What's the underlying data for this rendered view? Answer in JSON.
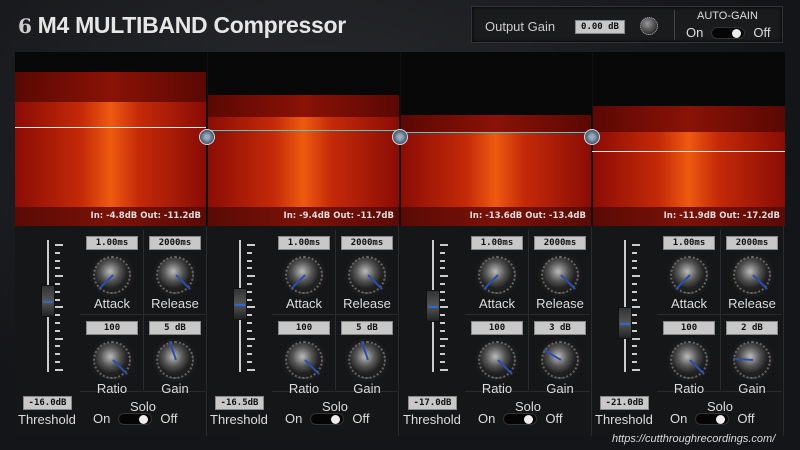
{
  "app": {
    "logo_glyph": "6",
    "title": "M4 MULTIBAND Compressor"
  },
  "output": {
    "label": "Output Gain",
    "value": "0.00 dB",
    "auto_gain_label": "AUTO-GAIN",
    "on": "On",
    "off": "Off",
    "auto_gain_state": "Off"
  },
  "colors": {
    "accent": "#2a4fb0",
    "threshold_line": "#3fd0d0",
    "band_fill": "#ee5a10"
  },
  "bands": [
    {
      "meter": "In: -4.8dB Out: -11.2dB",
      "attack": "1.00ms",
      "release": "2000ms",
      "ratio": "100",
      "gain": "5 dB",
      "threshold": "-16.0dB",
      "labels": {
        "attack": "Attack",
        "release": "Release",
        "ratio": "Ratio",
        "gain": "Gain",
        "threshold": "Threshold",
        "solo": "Solo",
        "on": "On",
        "off": "Off"
      },
      "solo_state": "Off",
      "knob_levels": {
        "attack": 0,
        "release": 1,
        "ratio": 1,
        "gain": 0.43
      }
    },
    {
      "meter": "In: -9.4dB Out: -11.7dB",
      "attack": "1.00ms",
      "release": "2000ms",
      "ratio": "100",
      "gain": "5 dB",
      "threshold": "-16.5dB",
      "labels": {
        "attack": "Attack",
        "release": "Release",
        "ratio": "Ratio",
        "gain": "Gain",
        "threshold": "Threshold",
        "solo": "Solo",
        "on": "On",
        "off": "Off"
      },
      "solo_state": "Off",
      "knob_levels": {
        "attack": 0,
        "release": 1,
        "ratio": 1,
        "gain": 0.43
      }
    },
    {
      "meter": "In: -13.6dB Out: -13.4dB",
      "attack": "1.00ms",
      "release": "2000ms",
      "ratio": "100",
      "gain": "3 dB",
      "threshold": "-17.0dB",
      "labels": {
        "attack": "Attack",
        "release": "Release",
        "ratio": "Ratio",
        "gain": "Gain",
        "threshold": "Threshold",
        "solo": "Solo",
        "on": "On",
        "off": "Off"
      },
      "solo_state": "Off",
      "knob_levels": {
        "attack": 0,
        "release": 1,
        "ratio": 1,
        "gain": 0.28
      }
    },
    {
      "meter": "In: -11.9dB Out: -17.2dB",
      "attack": "1.00ms",
      "release": "2000ms",
      "ratio": "100",
      "gain": "2 dB",
      "threshold": "-21.0dB",
      "labels": {
        "attack": "Attack",
        "release": "Release",
        "ratio": "Ratio",
        "gain": "Gain",
        "threshold": "Threshold",
        "solo": "Solo",
        "on": "On",
        "off": "Off"
      },
      "solo_state": "Off",
      "knob_levels": {
        "attack": 0,
        "release": 1,
        "ratio": 1,
        "gain": 0.18
      }
    }
  ],
  "footer": {
    "url": "https://cutthroughrecordings.com/"
  }
}
